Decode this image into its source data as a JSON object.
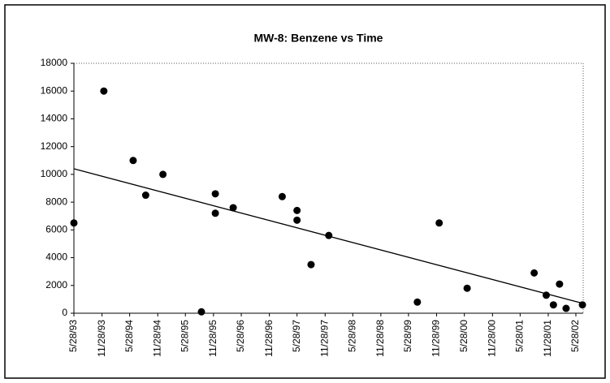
{
  "chart_data": {
    "type": "scatter",
    "title": "MW-8: Benzene vs Time",
    "color": "#000000",
    "x": [
      "1993-05-28",
      "1993-12-10",
      "1994-06-20",
      "1994-09-10",
      "1995-01-01",
      "1995-09-10",
      "1995-12-10",
      "1995-12-10",
      "1996-04-05",
      "1997-02-20",
      "1997-05-28",
      "1997-05-28",
      "1997-08-28",
      "1997-12-22",
      "1999-07-25",
      "1999-12-15",
      "2000-06-15",
      "2001-08-28",
      "2001-11-15",
      "2002-01-01",
      "2002-02-10",
      "2002-03-25",
      "2002-07-10"
    ],
    "values": [
      6500,
      16000,
      11000,
      8500,
      10000,
      100,
      8600,
      7200,
      7600,
      8400,
      7400,
      6700,
      3500,
      5600,
      800,
      6500,
      1800,
      2900,
      1300,
      600,
      2100,
      350,
      600
    ],
    "trendline": {
      "x": [
        "1993-05-28",
        "2002-07-15"
      ],
      "values": [
        10400,
        700
      ]
    },
    "xlim": [
      "1993-05-28",
      "2002-07-15"
    ],
    "xticks": [
      {
        "value": "1993-05-28",
        "label": "5/28/93"
      },
      {
        "value": "1993-11-28",
        "label": "11/28/93"
      },
      {
        "value": "1994-05-28",
        "label": "5/28/94"
      },
      {
        "value": "1994-11-28",
        "label": "11/28/94"
      },
      {
        "value": "1995-05-28",
        "label": "5/28/95"
      },
      {
        "value": "1995-11-28",
        "label": "11/28/95"
      },
      {
        "value": "1996-05-28",
        "label": "5/28/96"
      },
      {
        "value": "1996-11-28",
        "label": "11/28/96"
      },
      {
        "value": "1997-05-28",
        "label": "5/28/97"
      },
      {
        "value": "1997-11-28",
        "label": "11/28/97"
      },
      {
        "value": "1998-05-28",
        "label": "5/28/98"
      },
      {
        "value": "1998-11-28",
        "label": "11/28/98"
      },
      {
        "value": "1999-05-28",
        "label": "5/28/99"
      },
      {
        "value": "1999-11-28",
        "label": "11/28/99"
      },
      {
        "value": "2000-05-28",
        "label": "5/28/00"
      },
      {
        "value": "2000-11-28",
        "label": "11/28/00"
      },
      {
        "value": "2001-05-28",
        "label": "5/28/01"
      },
      {
        "value": "2001-11-28",
        "label": "11/28/01"
      },
      {
        "value": "2002-05-28",
        "label": "5/28/02"
      }
    ],
    "ylim": [
      0,
      18000
    ],
    "yticks": [
      0,
      2000,
      4000,
      6000,
      8000,
      10000,
      12000,
      14000,
      16000,
      18000
    ],
    "grid": false
  }
}
